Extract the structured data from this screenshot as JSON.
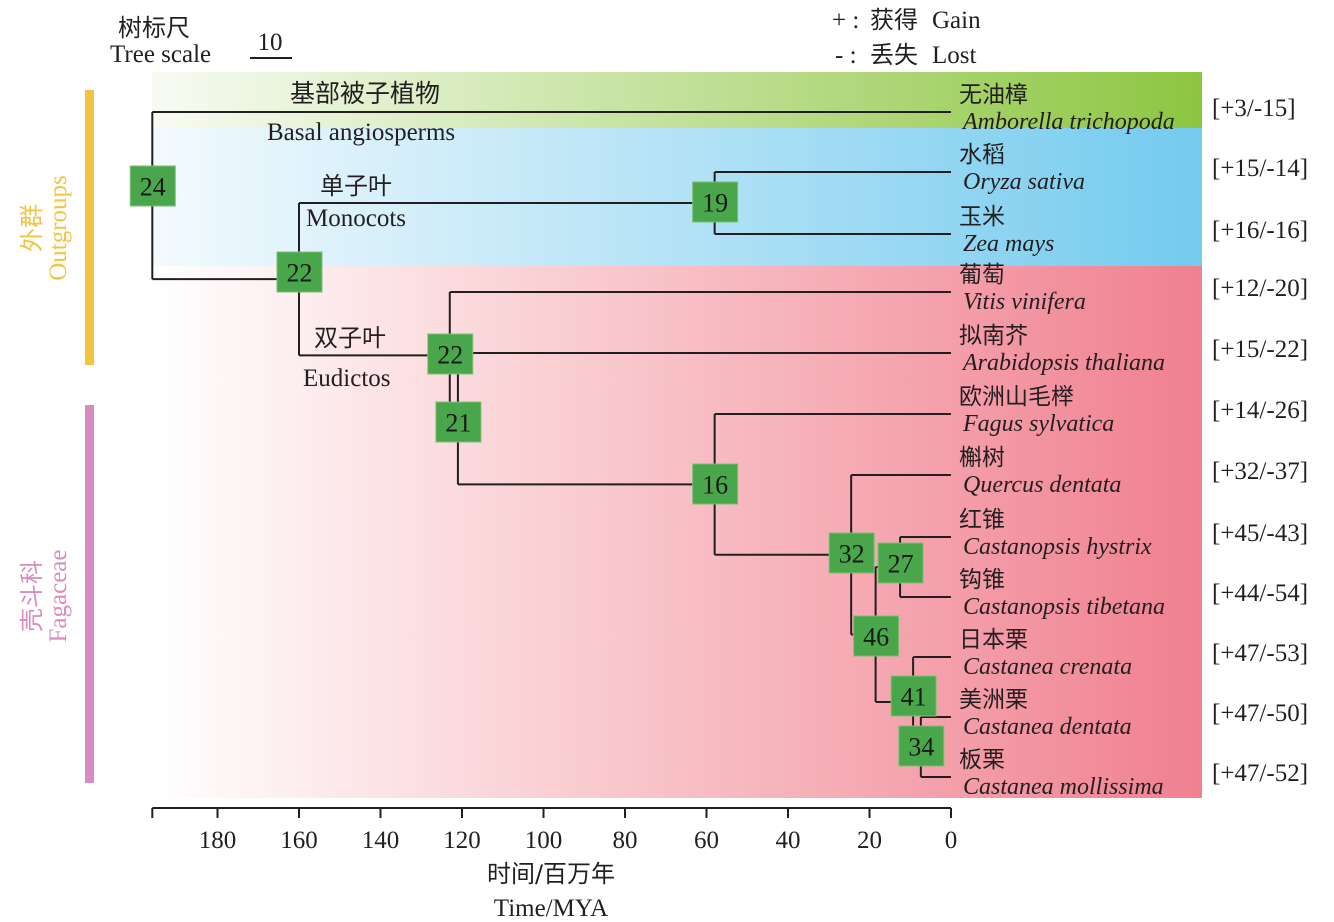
{
  "scale": {
    "label_cn": "树标尺",
    "label_en": "Tree scale",
    "value": "10"
  },
  "legend": {
    "gain": {
      "symbol": "+ :",
      "cn": "获得",
      "en": "Gain"
    },
    "lost": {
      "symbol": "- :",
      "cn": "丢失",
      "en": "Lost"
    }
  },
  "groups": {
    "outgroups": {
      "cn": "外群",
      "en": "Outgroups",
      "color": "#f2c43f"
    },
    "fagaceae": {
      "cn": "壳斗科",
      "en": "Fagaceae",
      "color": "#d98cbf"
    }
  },
  "clades": {
    "basal": {
      "cn": "基部被子植物",
      "en": "Basal angiosperms",
      "color_light": "#f3f8ea",
      "color_dark": "#8dc641"
    },
    "monocots": {
      "cn": "单子叶",
      "en": "Monocots",
      "color_light": "#eef8fd",
      "color_dark": "#74cbee"
    },
    "eudicots": {
      "cn": "双子叶",
      "en": "Eudictos",
      "color_light": "#ffffff",
      "color_dark": "#f08090"
    }
  },
  "taxa": [
    {
      "id": "amb",
      "cn": "无油樟",
      "latin": "Amborella trichopoda",
      "gain_loss": "[+3/-15]"
    },
    {
      "id": "ory",
      "cn": "水稻",
      "latin": "Oryza sativa",
      "gain_loss": "[+15/-14]"
    },
    {
      "id": "zea",
      "cn": "玉米",
      "latin": "Zea mays",
      "gain_loss": "[+16/-16]"
    },
    {
      "id": "vit",
      "cn": "葡萄",
      "latin": "Vitis vinifera",
      "gain_loss": "[+12/-20]"
    },
    {
      "id": "ara",
      "cn": "拟南芥",
      "latin": "Arabidopsis thaliana",
      "gain_loss": "[+15/-22]"
    },
    {
      "id": "fag",
      "cn": "欧洲山毛榉",
      "latin": "Fagus sylvatica",
      "gain_loss": "[+14/-26]"
    },
    {
      "id": "que",
      "cn": "槲树",
      "latin": "Quercus dentata",
      "gain_loss": "[+32/-37]"
    },
    {
      "id": "chy",
      "cn": "红锥",
      "latin": "Castanopsis hystrix",
      "gain_loss": "[+45/-43]"
    },
    {
      "id": "cti",
      "cn": "钩锥",
      "latin": "Castanopsis tibetana",
      "gain_loss": "[+44/-54]"
    },
    {
      "id": "ccr",
      "cn": "日本栗",
      "latin": "Castanea crenata",
      "gain_loss": "[+47/-53]"
    },
    {
      "id": "cde",
      "cn": "美洲栗",
      "latin": "Castanea dentata",
      "gain_loss": "[+47/-50]"
    },
    {
      "id": "cmo",
      "cn": "板栗",
      "latin": "Castanea mollissima",
      "gain_loss": "[+47/-52]"
    }
  ],
  "nodes": [
    {
      "id": "n_root",
      "label": "24",
      "age_mya": 196,
      "children": [
        "amb",
        "n_ang"
      ]
    },
    {
      "id": "n_ang",
      "label": "22",
      "age_mya": 160,
      "children": [
        "n_mono",
        "n_eud"
      ]
    },
    {
      "id": "n_mono",
      "label": "19",
      "age_mya": 58,
      "children": [
        "ory",
        "zea"
      ]
    },
    {
      "id": "n_eud",
      "label": "22",
      "age_mya": 123,
      "children": [
        "vit",
        "n_ros"
      ]
    },
    {
      "id": "n_ros",
      "label": "21",
      "age_mya": 121,
      "children": [
        "ara",
        "n_fag"
      ]
    },
    {
      "id": "n_fag",
      "label": "16",
      "age_mya": 58,
      "children": [
        "fag",
        "n_q"
      ]
    },
    {
      "id": "n_q",
      "label": "32",
      "age_mya": 24.5,
      "children": [
        "que",
        "n_cc"
      ]
    },
    {
      "id": "n_cc",
      "label": "46",
      "age_mya": 18.5,
      "children": [
        "n_cp",
        "n_ca"
      ]
    },
    {
      "id": "n_cp",
      "label": "27",
      "age_mya": 12.5,
      "children": [
        "chy",
        "cti"
      ]
    },
    {
      "id": "n_ca",
      "label": "41",
      "age_mya": 9.3,
      "children": [
        "ccr",
        "n_cd"
      ]
    },
    {
      "id": "n_cd",
      "label": "34",
      "age_mya": 7.4,
      "children": [
        "cde",
        "cmo"
      ]
    }
  ],
  "axis": {
    "ticks": [
      "180",
      "160",
      "140",
      "120",
      "100",
      "80",
      "60",
      "40",
      "20",
      "0"
    ],
    "tick_values": [
      180,
      160,
      140,
      120,
      100,
      80,
      60,
      40,
      20,
      0
    ],
    "range_mya": [
      196,
      0
    ],
    "title_cn": "时间/百万年",
    "title_en": "Time/MYA"
  }
}
